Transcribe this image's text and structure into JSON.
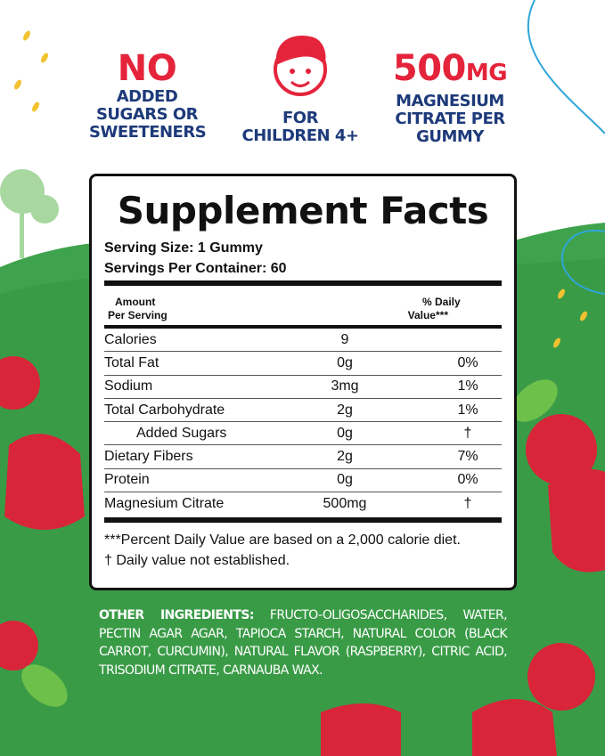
{
  "claims": [
    {
      "big": "NO",
      "text": [
        "ADDED",
        "SUGARS OR",
        "SWEETENERS"
      ]
    },
    {
      "icon": "child-face-icon",
      "text": [
        "FOR",
        "CHILDREN 4+"
      ]
    },
    {
      "big": "500",
      "unit": "MG",
      "text": [
        "MAGNESIUM",
        "CITRATE PER",
        "GUMMY"
      ]
    }
  ],
  "panel": {
    "title": "Supplement Facts",
    "serving_size": "Serving Size: 1 Gummy",
    "servings_per_container": "Servings Per Container: 60",
    "header": {
      "amount": [
        "Amount",
        "Per Serving"
      ],
      "dv": [
        "% Daily",
        "Value***"
      ]
    },
    "rows": [
      {
        "name": "Calories",
        "amount": "9",
        "dv": ""
      },
      {
        "name": "Total Fat",
        "amount": "0g",
        "dv": "0%"
      },
      {
        "name": "Sodium",
        "amount": "3mg",
        "dv": "1%"
      },
      {
        "name": "Total Carbohydrate",
        "amount": "2g",
        "dv": "1%"
      },
      {
        "name": "Added Sugars",
        "amount": "0g",
        "dv": "†"
      },
      {
        "name": "Dietary Fibers",
        "amount": "2g",
        "dv": "7%"
      },
      {
        "name": "Protein",
        "amount": "0g",
        "dv": "0%"
      },
      {
        "name": "Magnesium Citrate",
        "amount": "500mg",
        "dv": "†"
      }
    ],
    "footnotes": [
      "***Percent Daily Value  are based on a 2,000 calorie diet.",
      "† Daily value not established."
    ]
  },
  "ingredients": {
    "label": "OTHER INGREDIENTS:",
    "text": "FRUCTO-OLIGOSACCHARIDES, WATER, PECTIN AGAR AGAR, TAPIOCA STARCH, NATURAL COLOR (BLACK CARROT, CURCUMIN), NATURAL FLAVOR (RASPBERRY), CITRIC ACID, TRISODIUM CITRATE, CARNAUBA WAX."
  },
  "colors": {
    "green": "#3ea34c",
    "red": "#e4243b",
    "navy": "#1d3a7a"
  }
}
